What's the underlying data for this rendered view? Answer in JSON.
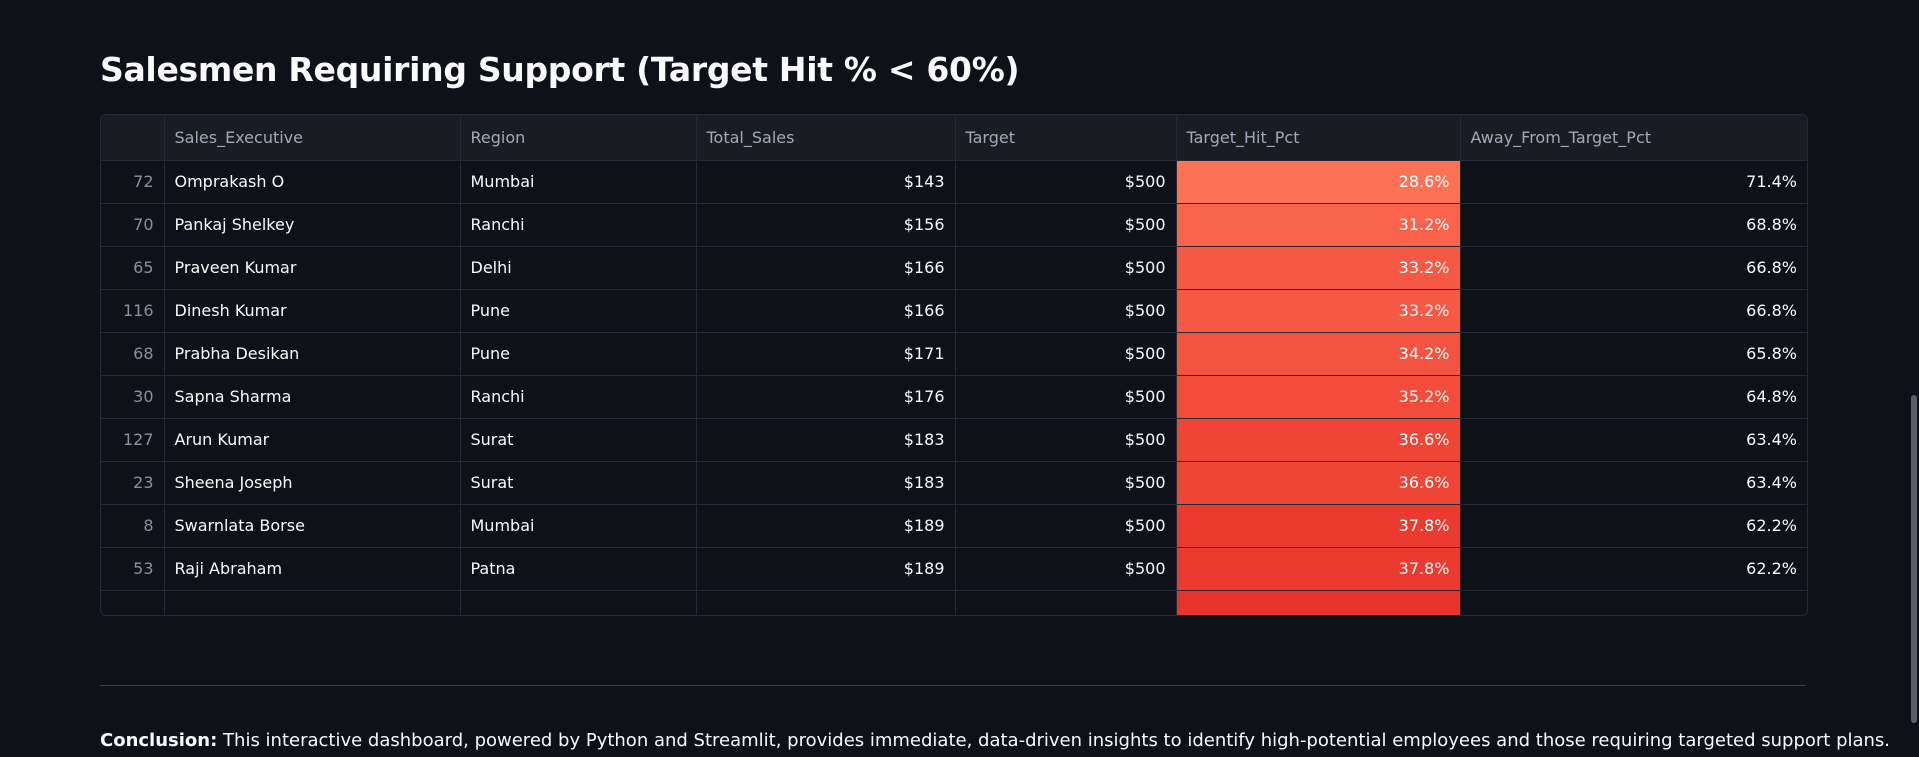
{
  "title": "Salesmen Requiring Support (Target Hit % < 60%)",
  "table": {
    "columns": [
      "",
      "Sales_Executive",
      "Region",
      "Total_Sales",
      "Target",
      "Target_Hit_Pct",
      "Away_From_Target_Pct"
    ],
    "rows": [
      {
        "index": "72",
        "name": "Omprakash O",
        "region": "Mumbai",
        "total_sales": "$143",
        "target": "$500",
        "hit_pct": "28.6%",
        "away_pct": "71.4%",
        "heat_color": "#fd7255"
      },
      {
        "index": "70",
        "name": "Pankaj Shelkey",
        "region": "Ranchi",
        "total_sales": "$156",
        "target": "$500",
        "hit_pct": "31.2%",
        "away_pct": "68.8%",
        "heat_color": "#f9634c"
      },
      {
        "index": "65",
        "name": "Praveen Kumar",
        "region": "Delhi",
        "total_sales": "$166",
        "target": "$500",
        "hit_pct": "33.2%",
        "away_pct": "66.8%",
        "heat_color": "#f55845"
      },
      {
        "index": "116",
        "name": "Dinesh Kumar",
        "region": "Pune",
        "total_sales": "$166",
        "target": "$500",
        "hit_pct": "33.2%",
        "away_pct": "66.8%",
        "heat_color": "#f55845"
      },
      {
        "index": "68",
        "name": "Prabha Desikan",
        "region": "Pune",
        "total_sales": "$171",
        "target": "$500",
        "hit_pct": "34.2%",
        "away_pct": "65.8%",
        "heat_color": "#f35341"
      },
      {
        "index": "30",
        "name": "Sapna Sharma",
        "region": "Ranchi",
        "total_sales": "$176",
        "target": "$500",
        "hit_pct": "35.2%",
        "away_pct": "64.8%",
        "heat_color": "#f14c3c"
      },
      {
        "index": "127",
        "name": "Arun Kumar",
        "region": "Surat",
        "total_sales": "$183",
        "target": "$500",
        "hit_pct": "36.6%",
        "away_pct": "63.4%",
        "heat_color": "#ee4536"
      },
      {
        "index": "23",
        "name": "Sheena Joseph",
        "region": "Surat",
        "total_sales": "$183",
        "target": "$500",
        "hit_pct": "36.6%",
        "away_pct": "63.4%",
        "heat_color": "#ee4536"
      },
      {
        "index": "8",
        "name": "Swarnlata Borse",
        "region": "Mumbai",
        "total_sales": "$189",
        "target": "$500",
        "hit_pct": "37.8%",
        "away_pct": "62.2%",
        "heat_color": "#eb3a30"
      },
      {
        "index": "53",
        "name": "Raji Abraham",
        "region": "Patna",
        "total_sales": "$189",
        "target": "$500",
        "hit_pct": "37.8%",
        "away_pct": "62.2%",
        "heat_color": "#eb3a30"
      },
      {
        "index": "",
        "name": "",
        "region": "",
        "total_sales": "",
        "target": "",
        "hit_pct": "",
        "away_pct": "",
        "heat_color": "#e8342d"
      }
    ]
  },
  "conclusion": {
    "label": "Conclusion:",
    "text": " This interactive dashboard, powered by Python and Streamlit, provides immediate, data-driven insights to identify high-potential employees and those requiring targeted support plans."
  },
  "colors": {
    "background": "#0e1117",
    "header_bg": "#1a1c24",
    "grid": "#262a33"
  }
}
